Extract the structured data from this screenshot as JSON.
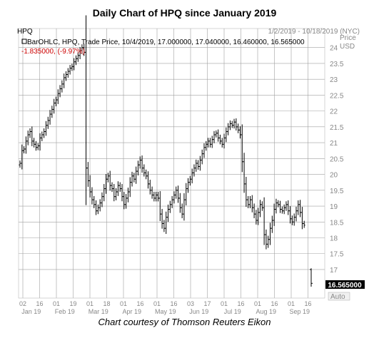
{
  "title": "Daily Chart of HPQ since January 2019",
  "caption": "Chart courtesy of Thomson Reuters Eikon",
  "header": {
    "symbol": "HPQ",
    "date_range": "1/2/2019 - 10/18/2019 (NYC)",
    "legend_line1": "BarOHLC, HPQ, Trade Price, 10/4/2019, 17.000000, 17.040000, 16.460000, 16.565000",
    "legend_line2": "-1.835000, (-9.97%)",
    "price_label": "Price",
    "currency_label": "USD",
    "auto_label": "Auto",
    "last_price_label": "16.565000"
  },
  "colors": {
    "bars": "#000000",
    "grid": "#a0a0a0",
    "change_text": "#cc0000",
    "last_price_bg": "#000000",
    "last_price_text": "#ffffff"
  },
  "chart_data": {
    "type": "ohlc",
    "title": "Daily Chart of HPQ since January 2019",
    "ylabel": "Price USD",
    "ylim": [
      16.1,
      24.6
    ],
    "y_ticks": [
      17,
      17.5,
      18,
      18.5,
      19,
      19.5,
      20,
      20.5,
      21,
      21.5,
      22,
      22.5,
      23,
      23.5,
      24
    ],
    "x_day_ticks": [
      "02",
      "16",
      "01",
      "19",
      "01",
      "18",
      "01",
      "16",
      "01",
      "16",
      "03",
      "17",
      "01",
      "16",
      "01",
      "16",
      "01",
      "16"
    ],
    "x_month_labels": [
      "Jan 19",
      "Feb 19",
      "Mar 19",
      "Apr 19",
      "May 19",
      "Jun 19",
      "Jul 19",
      "Aug 19",
      "Sep 19"
    ],
    "grid": true,
    "last_price": 16.565,
    "last_bar": {
      "date": "10/4/2019",
      "open": 17.0,
      "high": 17.04,
      "low": 16.46,
      "close": 16.565,
      "change": -1.835,
      "change_pct": -9.97
    },
    "closes": [
      20.35,
      20.75,
      20.8,
      21.05,
      21.25,
      21.35,
      21.05,
      20.95,
      20.85,
      20.9,
      21.15,
      21.25,
      21.35,
      21.55,
      21.7,
      21.9,
      22.05,
      22.25,
      22.35,
      22.55,
      22.7,
      22.85,
      23.05,
      23.15,
      23.25,
      23.35,
      23.4,
      23.55,
      23.65,
      23.75,
      23.9,
      24.0,
      23.85,
      20.2,
      19.8,
      19.45,
      19.2,
      19.05,
      18.85,
      18.95,
      19.1,
      19.3,
      19.55,
      19.85,
      19.95,
      19.65,
      19.55,
      19.3,
      19.45,
      19.65,
      19.55,
      19.3,
      19.05,
      19.25,
      19.45,
      19.75,
      19.95,
      19.85,
      20.1,
      20.3,
      20.45,
      20.2,
      20.05,
      19.95,
      19.7,
      19.5,
      19.35,
      19.25,
      19.35,
      19.25,
      18.75,
      18.45,
      18.3,
      18.65,
      18.9,
      19.05,
      19.2,
      19.35,
      19.5,
      19.25,
      18.95,
      18.75,
      19.2,
      19.55,
      19.75,
      19.85,
      20.05,
      20.2,
      20.35,
      20.25,
      20.45,
      20.65,
      20.85,
      20.95,
      21.05,
      20.95,
      21.1,
      21.25,
      21.3,
      21.15,
      21.05,
      20.95,
      21.15,
      21.35,
      21.5,
      21.6,
      21.55,
      21.65,
      21.5,
      21.4,
      21.25,
      20.4,
      19.7,
      19.2,
      19.05,
      19.2,
      18.95,
      18.75,
      18.55,
      18.8,
      19.05,
      18.95,
      18.1,
      17.8,
      17.95,
      18.3,
      18.55,
      18.9,
      19.1,
      19.05,
      18.9,
      18.85,
      18.95,
      19.05,
      18.85,
      18.6,
      18.5,
      18.65,
      18.85,
      19.05,
      18.8,
      18.45,
      18.4
    ]
  }
}
